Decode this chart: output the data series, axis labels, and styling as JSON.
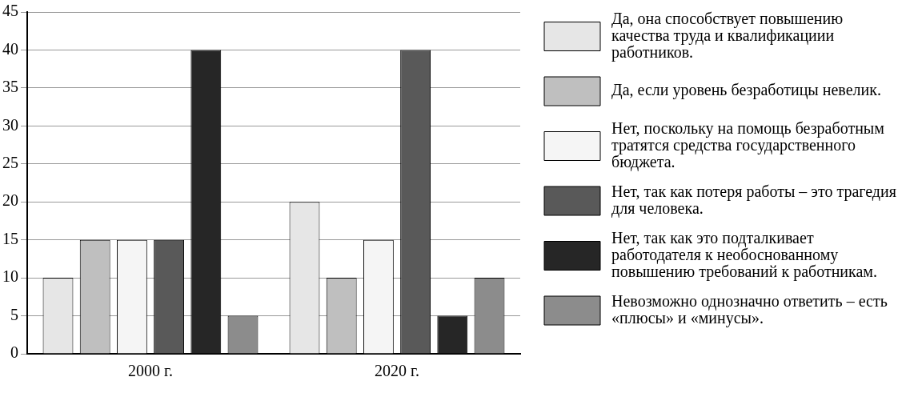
{
  "chart_data": {
    "type": "bar",
    "categories": [
      "2000 г.",
      "2020 г."
    ],
    "series": [
      {
        "name": "Да, она способствует повышению качества труда и квалификациии работников.",
        "color": "#e6e6e6",
        "values": [
          10,
          20
        ]
      },
      {
        "name": "Да, если уровень безработицы невелик.",
        "color": "#bfbfbf",
        "values": [
          15,
          10
        ]
      },
      {
        "name": "Нет, поскольку на помощь безработным тратятся средства государственного бюджета.",
        "color": "#f5f5f5",
        "values": [
          15,
          15
        ]
      },
      {
        "name": "Нет, так как потеря работы – это трагедия для человека.",
        "color": "#595959",
        "values": [
          15,
          40
        ]
      },
      {
        "name": "Нет, так как это подталкивает работодателя к необоснованному повышению требований к работникам.",
        "color": "#262626",
        "values": [
          40,
          5
        ]
      },
      {
        "name": "Невозможно однозначно ответить – есть «плюсы» и «минусы».",
        "color": "#8c8c8c",
        "values": [
          5,
          10
        ]
      }
    ],
    "ylim": [
      0,
      45
    ],
    "yticks": [
      0,
      5,
      10,
      15,
      20,
      25,
      30,
      35,
      40,
      45
    ],
    "grid": "y",
    "legend": "right"
  }
}
